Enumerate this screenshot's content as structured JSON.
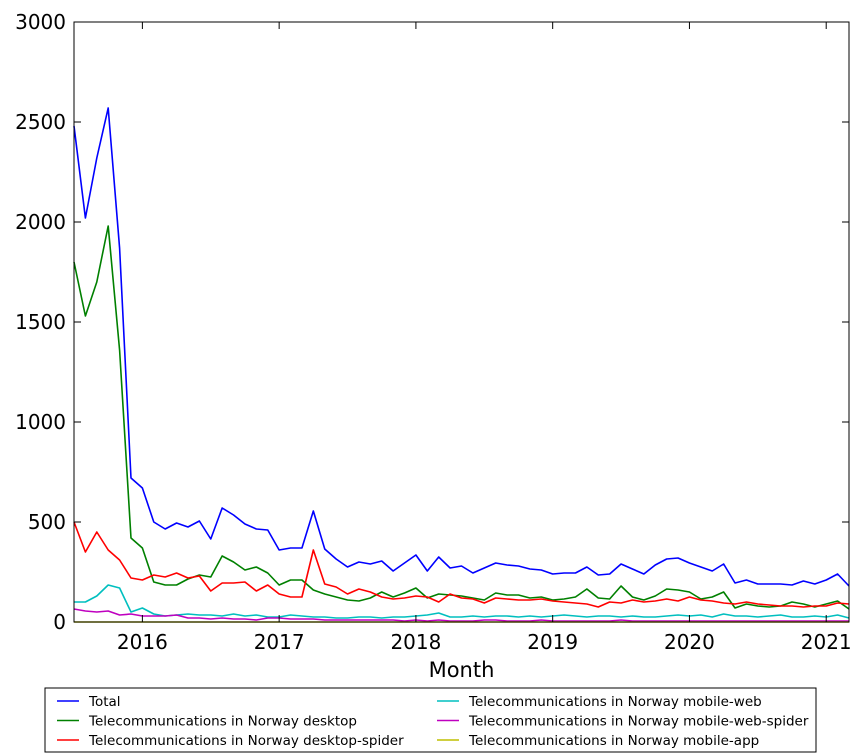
{
  "chart_data": {
    "type": "line",
    "title": "",
    "xlabel": "Month",
    "ylabel": "",
    "xlim": [
      "2015-07",
      "2021-03"
    ],
    "ylim": [
      0,
      3000
    ],
    "x_ticks": [
      "2016",
      "2017",
      "2018",
      "2019",
      "2020",
      "2021"
    ],
    "y_ticks": [
      "0",
      "500",
      "1000",
      "1500",
      "2000",
      "2500",
      "3000"
    ],
    "grid": false,
    "legend_position": "bottom",
    "x": [
      "2015-07",
      "2015-08",
      "2015-09",
      "2015-10",
      "2015-11",
      "2015-12",
      "2016-01",
      "2016-02",
      "2016-03",
      "2016-04",
      "2016-05",
      "2016-06",
      "2016-07",
      "2016-08",
      "2016-09",
      "2016-10",
      "2016-11",
      "2016-12",
      "2017-01",
      "2017-02",
      "2017-03",
      "2017-04",
      "2017-05",
      "2017-06",
      "2017-07",
      "2017-08",
      "2017-09",
      "2017-10",
      "2017-11",
      "2017-12",
      "2018-01",
      "2018-02",
      "2018-03",
      "2018-04",
      "2018-05",
      "2018-06",
      "2018-07",
      "2018-08",
      "2018-09",
      "2018-10",
      "2018-11",
      "2018-12",
      "2019-01",
      "2019-02",
      "2019-03",
      "2019-04",
      "2019-05",
      "2019-06",
      "2019-07",
      "2019-08",
      "2019-09",
      "2019-10",
      "2019-11",
      "2019-12",
      "2020-01",
      "2020-02",
      "2020-03",
      "2020-04",
      "2020-05",
      "2020-06",
      "2020-07",
      "2020-08",
      "2020-09",
      "2020-10",
      "2020-11",
      "2020-12",
      "2021-01",
      "2021-02",
      "2021-03"
    ],
    "series": [
      {
        "name": "Total",
        "color": "#0000ff",
        "values": [
          2480,
          2020,
          2320,
          2570,
          1870,
          720,
          670,
          500,
          465,
          495,
          475,
          505,
          415,
          570,
          535,
          490,
          465,
          460,
          360,
          370,
          370,
          555,
          365,
          315,
          275,
          300,
          290,
          305,
          255,
          295,
          335,
          255,
          325,
          270,
          280,
          245,
          270,
          295,
          285,
          280,
          265,
          260,
          240,
          245,
          245,
          275,
          235,
          240,
          290,
          265,
          240,
          285,
          315,
          320,
          295,
          275,
          255,
          290,
          195,
          210,
          190,
          190,
          190,
          185,
          205,
          190,
          210,
          240,
          180
        ]
      },
      {
        "name": "Telecommunications in Norway desktop",
        "color": "#008000",
        "values": [
          1800,
          1530,
          1700,
          1980,
          1360,
          420,
          370,
          200,
          185,
          185,
          215,
          235,
          225,
          330,
          300,
          260,
          275,
          245,
          185,
          210,
          210,
          160,
          140,
          125,
          110,
          105,
          120,
          150,
          125,
          145,
          170,
          120,
          140,
          135,
          130,
          120,
          110,
          145,
          135,
          135,
          120,
          125,
          110,
          115,
          125,
          165,
          120,
          115,
          180,
          125,
          110,
          130,
          165,
          160,
          150,
          115,
          125,
          150,
          70,
          90,
          80,
          75,
          80,
          100,
          90,
          75,
          90,
          105,
          65
        ]
      },
      {
        "name": "Telecommunications in Norway desktop-spider",
        "color": "#ff0000",
        "values": [
          500,
          350,
          450,
          360,
          310,
          220,
          210,
          235,
          225,
          245,
          220,
          230,
          155,
          195,
          195,
          200,
          155,
          185,
          140,
          125,
          125,
          360,
          190,
          175,
          140,
          165,
          150,
          125,
          115,
          120,
          130,
          125,
          100,
          140,
          120,
          115,
          95,
          120,
          115,
          110,
          110,
          115,
          105,
          100,
          95,
          90,
          75,
          100,
          95,
          110,
          100,
          105,
          115,
          105,
          125,
          110,
          105,
          95,
          90,
          100,
          90,
          85,
          80,
          80,
          75,
          80,
          80,
          95,
          90
        ]
      },
      {
        "name": "Telecommunications in Norway mobile-web",
        "color": "#00bfbf",
        "values": [
          100,
          100,
          130,
          185,
          170,
          50,
          70,
          40,
          30,
          35,
          40,
          35,
          35,
          30,
          40,
          30,
          35,
          25,
          25,
          35,
          30,
          25,
          25,
          20,
          20,
          25,
          25,
          20,
          25,
          25,
          30,
          35,
          45,
          25,
          25,
          30,
          25,
          30,
          30,
          25,
          30,
          25,
          30,
          35,
          30,
          25,
          30,
          30,
          25,
          30,
          25,
          25,
          30,
          35,
          30,
          35,
          25,
          40,
          30,
          30,
          25,
          30,
          35,
          25,
          25,
          30,
          25,
          35,
          20
        ]
      },
      {
        "name": "Telecommunications in Norway mobile-web-spider",
        "color": "#bf00bf",
        "values": [
          65,
          55,
          50,
          55,
          35,
          40,
          30,
          30,
          30,
          35,
          20,
          20,
          15,
          20,
          15,
          15,
          10,
          20,
          20,
          15,
          15,
          15,
          10,
          10,
          10,
          10,
          10,
          10,
          10,
          5,
          10,
          5,
          10,
          5,
          5,
          5,
          10,
          10,
          5,
          5,
          5,
          10,
          5,
          5,
          5,
          5,
          5,
          5,
          10,
          5,
          5,
          5,
          5,
          5,
          5,
          5,
          5,
          5,
          5,
          5,
          5,
          5,
          5,
          5,
          5,
          5,
          5,
          5,
          5
        ]
      },
      {
        "name": "Telecommunications in Norway mobile-app",
        "color": "#bfbf00",
        "values": [
          0,
          0,
          0,
          0,
          0,
          0,
          0,
          0,
          0,
          0,
          0,
          0,
          0,
          0,
          0,
          0,
          0,
          0,
          0,
          0,
          0,
          0,
          0,
          0,
          0,
          0,
          0,
          0,
          0,
          0,
          0,
          0,
          0,
          0,
          0,
          0,
          0,
          0,
          0,
          0,
          0,
          0,
          0,
          0,
          0,
          0,
          0,
          0,
          0,
          0,
          0,
          0,
          0,
          0,
          0,
          0,
          0,
          0,
          0,
          0,
          0,
          0,
          0,
          0,
          0,
          0,
          0,
          0,
          0
        ]
      }
    ]
  }
}
